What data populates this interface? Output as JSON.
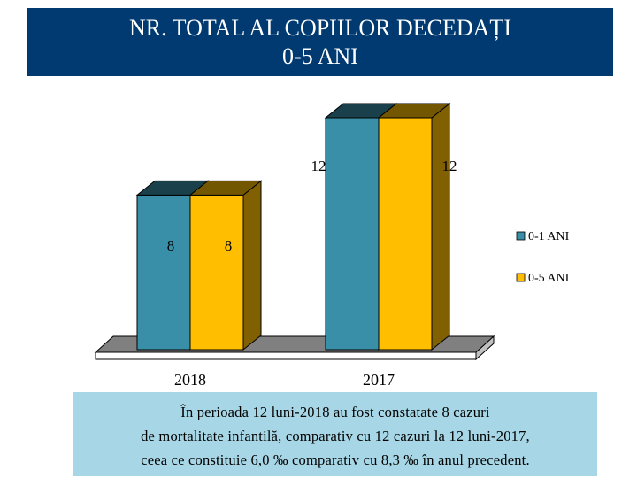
{
  "header": {
    "title_line1": "NR. TOTAL AL COPIILOR DECEDAȚI",
    "title_line2": "0-5 ANI"
  },
  "chart_data": {
    "type": "bar",
    "style": "3d-clustered",
    "categories": [
      "2018",
      "2017"
    ],
    "series": [
      {
        "name": "0-1 ANI",
        "values": [
          8,
          12
        ],
        "color": "#3a8fa8"
      },
      {
        "name": "0-5 ANI",
        "values": [
          8,
          12
        ],
        "color": "#ffbf00"
      }
    ],
    "value_labels": [
      [
        "8",
        "12"
      ],
      [
        "8",
        "12"
      ]
    ],
    "ylim": [
      0,
      12
    ],
    "grid": false,
    "legend_position": "right"
  },
  "note": {
    "line1": "În perioada 12 luni-2018 au fost constatate 8 cazuri",
    "line2": "de mortalitate infantilă, comparativ cu 12 cazuri la 12 luni-2017,",
    "line3": "ceea ce constituie 6,0 ‰ comparativ cu 8,3 ‰ în anul precedent."
  }
}
